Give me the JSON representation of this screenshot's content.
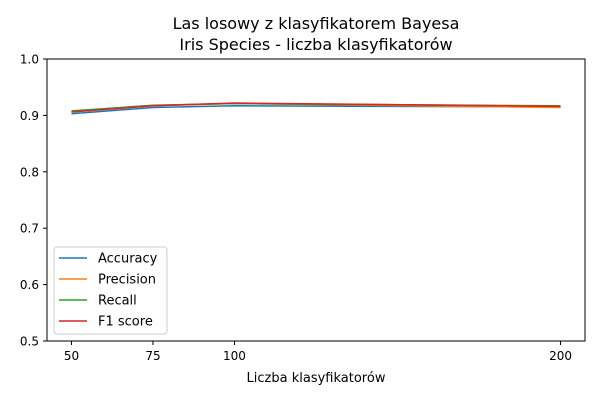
{
  "chart_data": {
    "type": "line",
    "title": "Las losowy z klasyfikatorem Bayesa",
    "subtitle": "Iris Species - liczba klasyfikatorów",
    "xlabel": "Liczba klasyfikatorów",
    "ylabel": "",
    "x": [
      50,
      75,
      100,
      200
    ],
    "xlim": [
      42.5,
      207.5
    ],
    "ylim": [
      0.5,
      1.0
    ],
    "xticks": [
      "50",
      "75",
      "100",
      "200"
    ],
    "yticks": [
      "0.5",
      "0.6",
      "0.7",
      "0.8",
      "0.9",
      "1.0"
    ],
    "legend_position": "lower-left",
    "series": [
      {
        "name": "Accuracy",
        "color": "#1f77b4",
        "values": [
          0.903,
          0.914,
          0.917,
          0.915
        ]
      },
      {
        "name": "Precision",
        "color": "#ff7f0e",
        "values": [
          0.907,
          0.917,
          0.921,
          0.914
        ]
      },
      {
        "name": "Recall",
        "color": "#2ca02c",
        "values": [
          0.908,
          0.918,
          0.921,
          0.917
        ]
      },
      {
        "name": "F1 score",
        "color": "#d62728",
        "values": [
          0.906,
          0.917,
          0.922,
          0.916
        ]
      }
    ]
  }
}
